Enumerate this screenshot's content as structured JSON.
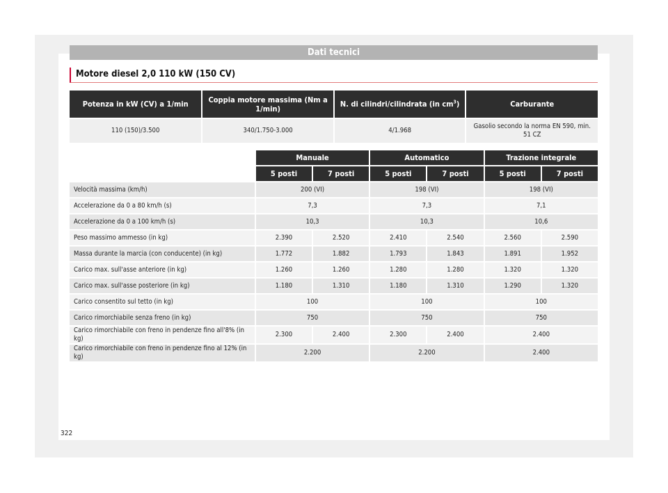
{
  "header": {
    "title": "Dati tecnici"
  },
  "section": {
    "title": "Motore diesel 2,0 110 kW (150 CV)"
  },
  "engine_table": {
    "headers": [
      "Potenza in kW (CV) a 1/min",
      "Coppia motore massima (Nm a 1/min)",
      "N. di cilindri/cilindrata (in cm",
      "Carburante"
    ],
    "header_sup": "3",
    "header_close": ")",
    "values": [
      "110 (150)/3.500",
      "340/1.750-3.000",
      "4/1.968",
      "Gasolio secondo la norma EN 590, min. 51 CZ"
    ]
  },
  "data_table": {
    "groups": [
      "Manuale",
      "Automatico",
      "Trazione integrale"
    ],
    "subheaders": [
      "5 posti",
      "7 posti",
      "5 posti",
      "7 posti",
      "5 posti",
      "7 posti"
    ],
    "rows": [
      {
        "label": "Velocità massima (km/h)",
        "manual": "200 (VI)",
        "auto": "198 (VI)",
        "awd": "198 (VI)"
      },
      {
        "label": "Accelerazione da 0 a 80 km/h (s)",
        "manual": "7,3",
        "auto": "7,3",
        "awd": "7,1"
      },
      {
        "label": "Accelerazione da 0 a 100 km/h (s)",
        "manual": "10,3",
        "auto": "10,3",
        "awd": "10,6"
      },
      {
        "label": "Peso massimo ammesso (in kg)",
        "cells": [
          "2.390",
          "2.520",
          "2.410",
          "2.540",
          "2.560",
          "2.590"
        ]
      },
      {
        "label": "Massa durante la marcia (con conducente) (in kg)",
        "cells": [
          "1.772",
          "1.882",
          "1.793",
          "1.843",
          "1.891",
          "1.952"
        ]
      },
      {
        "label": "Carico max. sull'asse anteriore (in kg)",
        "cells": [
          "1.260",
          "1.260",
          "1.280",
          "1.280",
          "1.320",
          "1.320"
        ]
      },
      {
        "label": "Carico max. sull'asse posteriore (in kg)",
        "cells": [
          "1.180",
          "1.310",
          "1.180",
          "1.310",
          "1.290",
          "1.320"
        ]
      },
      {
        "label": "Carico consentito sul tetto (in kg)",
        "manual": "100",
        "auto": "100",
        "awd": "100"
      },
      {
        "label": "Carico rimorchiabile senza freno (in kg)",
        "manual": "750",
        "auto": "750",
        "awd": "750"
      },
      {
        "label": "Carico rimorchiabile con freno in pendenze fino all'8% (in kg)",
        "cells": [
          "2.300",
          "2.400",
          "2.300",
          "2.400"
        ],
        "awd": "2.400"
      },
      {
        "label": "Carico rimorchiabile con freno in pendenze fino al 12% (in kg)",
        "manual": "2.200",
        "auto": "2.200",
        "awd": "2.400"
      }
    ]
  },
  "footer": {
    "page_number": "322"
  }
}
